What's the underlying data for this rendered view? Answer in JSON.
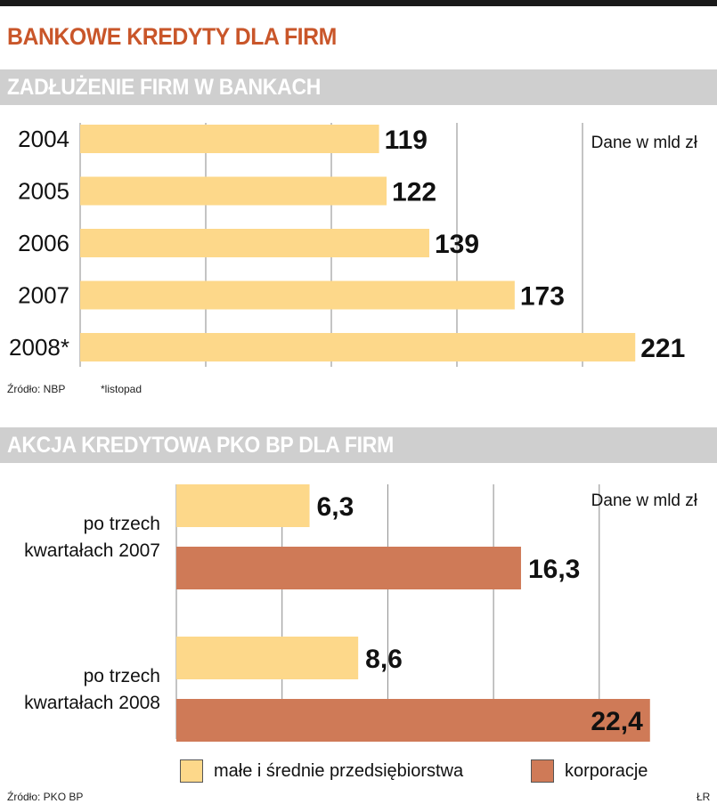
{
  "title": "BANKOWE KREDYTY DLA FIRM",
  "colors": {
    "light_bar": "#fdd88a",
    "dark_bar": "#cf7a57",
    "title": "#c9562a",
    "band": "#cfcfcf"
  },
  "section1": {
    "heading": "ZADŁUŻENIE FIRM W BANKACH",
    "unit_note": "Dane w mld zł",
    "source": "Źródło: NBP",
    "footnote": "*listopad"
  },
  "section2": {
    "heading": "AKCJA KREDYTOWA PKO BP DLA FIRM",
    "unit_note": "Dane w mld zł",
    "source": "Źródło: PKO BP",
    "legend": [
      {
        "label": "małe i średnie przedsiębiorstwa",
        "color": "#fdd88a"
      },
      {
        "label": "korporacje",
        "color": "#cf7a57"
      }
    ],
    "credit": "ŁR"
  },
  "chart_data": [
    {
      "type": "bar",
      "orientation": "horizontal",
      "title": "ZADŁUŻENIE FIRM W BANKACH",
      "unit": "Dane w mld zł",
      "categories": [
        "2004",
        "2005",
        "2006",
        "2007",
        "2008*"
      ],
      "values": [
        119,
        122,
        139,
        173,
        221
      ],
      "value_labels": [
        "119",
        "122",
        "139",
        "173",
        "221"
      ],
      "xlim": [
        0,
        250
      ],
      "grid": true
    },
    {
      "type": "bar",
      "orientation": "horizontal",
      "title": "AKCJA KREDYTOWA PKO BP DLA FIRM",
      "unit": "Dane w mld zł",
      "categories": [
        "po trzech kwartałach 2007",
        "po trzech kwartałach 2008"
      ],
      "category_lines": [
        [
          "po trzech",
          "kwartałach 2007"
        ],
        [
          "po trzech",
          "kwartałach 2008"
        ]
      ],
      "series": [
        {
          "name": "małe i średnie przedsiębiorstwa",
          "values": [
            6.3,
            8.6
          ],
          "labels": [
            "6,3",
            "8,6"
          ]
        },
        {
          "name": "korporacje",
          "values": [
            16.3,
            22.4
          ],
          "labels": [
            "16,3",
            "22,4"
          ]
        }
      ],
      "xlim": [
        0,
        25
      ],
      "grid": true
    }
  ]
}
